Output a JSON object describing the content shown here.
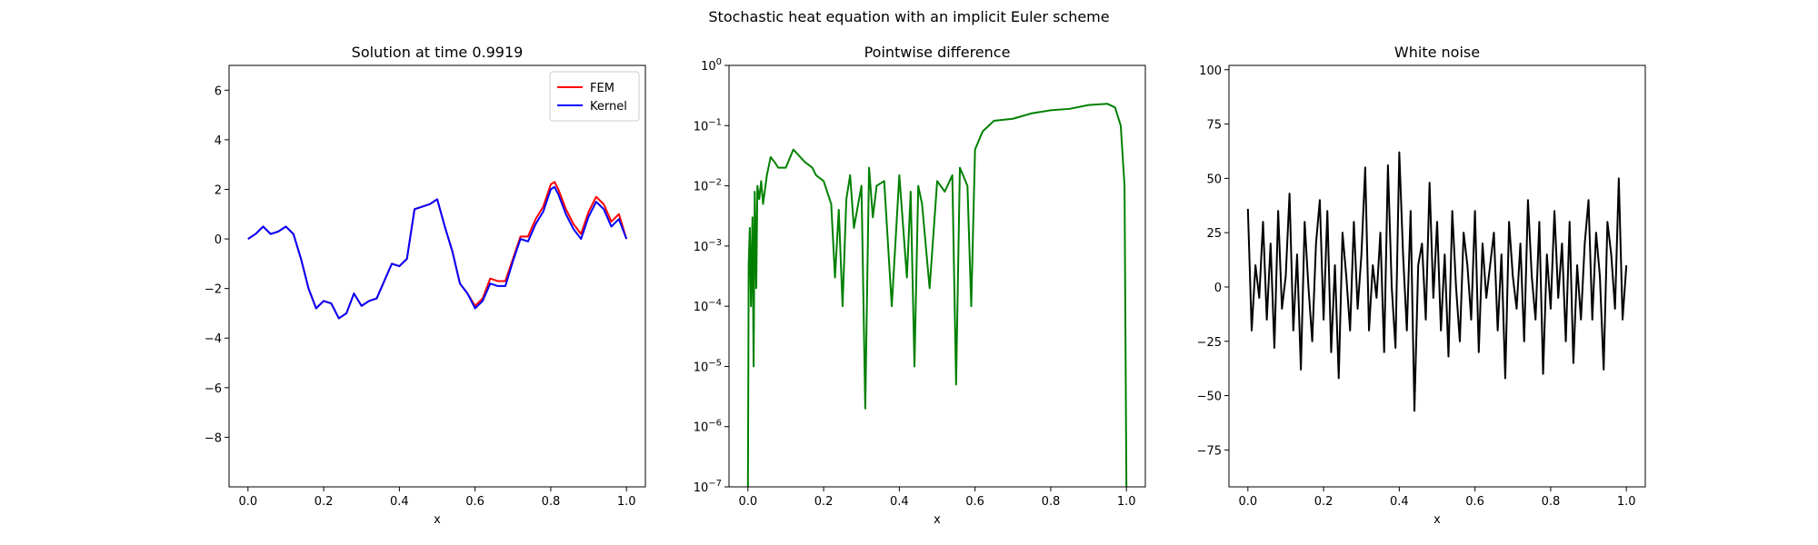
{
  "suptitle": "Stochastic heat equation with an implicit Euler scheme",
  "chart_data": [
    {
      "type": "line",
      "title": "Solution at time 0.9919",
      "xlabel": "x",
      "ylabel": "",
      "xlim": [
        -0.05,
        1.05
      ],
      "ylim": [
        -10,
        7
      ],
      "yscale": "linear",
      "xticks": [
        0.0,
        0.2,
        0.4,
        0.6,
        0.8,
        1.0
      ],
      "xtick_labels": [
        "0.0",
        "0.2",
        "0.4",
        "0.6",
        "0.8",
        "1.0"
      ],
      "yticks": [
        -8,
        -6,
        -4,
        -2,
        0,
        2,
        4,
        6
      ],
      "ytick_labels": [
        "−8",
        "−6",
        "−4",
        "−2",
        "0",
        "2",
        "4",
        "6"
      ],
      "grid": false,
      "legend": "top-right",
      "series": [
        {
          "name": "FEM",
          "color": "#ff0000",
          "x": [
            0.0,
            0.02,
            0.04,
            0.06,
            0.08,
            0.1,
            0.12,
            0.14,
            0.16,
            0.18,
            0.2,
            0.22,
            0.24,
            0.26,
            0.28,
            0.3,
            0.32,
            0.34,
            0.36,
            0.38,
            0.4,
            0.42,
            0.44,
            0.46,
            0.48,
            0.5,
            0.52,
            0.54,
            0.56,
            0.58,
            0.6,
            0.62,
            0.64,
            0.66,
            0.68,
            0.7,
            0.72,
            0.74,
            0.76,
            0.78,
            0.8,
            0.81,
            0.82,
            0.84,
            0.86,
            0.88,
            0.9,
            0.92,
            0.94,
            0.96,
            0.98,
            1.0
          ],
          "y": [
            0.0,
            0.2,
            0.5,
            0.2,
            0.3,
            0.5,
            0.2,
            -0.8,
            -2.0,
            -2.8,
            -2.5,
            -2.6,
            -3.2,
            -3.0,
            -2.2,
            -2.7,
            -2.5,
            -2.4,
            -1.7,
            -1.0,
            -1.1,
            -0.8,
            1.2,
            1.3,
            1.4,
            1.6,
            0.5,
            -0.5,
            -1.8,
            -2.2,
            -2.7,
            -2.4,
            -1.6,
            -1.7,
            -1.7,
            -0.8,
            0.1,
            0.1,
            0.8,
            1.3,
            2.2,
            2.3,
            2.0,
            1.2,
            0.6,
            0.2,
            1.1,
            1.7,
            1.4,
            0.7,
            1.0,
            0.0
          ]
        },
        {
          "name": "Kernel",
          "color": "#0000ff",
          "x": [
            0.0,
            0.02,
            0.04,
            0.06,
            0.08,
            0.1,
            0.12,
            0.14,
            0.16,
            0.18,
            0.2,
            0.22,
            0.24,
            0.26,
            0.28,
            0.3,
            0.32,
            0.34,
            0.36,
            0.38,
            0.4,
            0.42,
            0.44,
            0.46,
            0.48,
            0.5,
            0.52,
            0.54,
            0.56,
            0.58,
            0.6,
            0.62,
            0.64,
            0.66,
            0.68,
            0.7,
            0.72,
            0.74,
            0.76,
            0.78,
            0.8,
            0.81,
            0.82,
            0.84,
            0.86,
            0.88,
            0.9,
            0.92,
            0.94,
            0.96,
            0.98,
            1.0
          ],
          "y": [
            0.0,
            0.2,
            0.5,
            0.2,
            0.3,
            0.5,
            0.2,
            -0.8,
            -2.0,
            -2.8,
            -2.5,
            -2.6,
            -3.2,
            -3.0,
            -2.2,
            -2.7,
            -2.5,
            -2.4,
            -1.7,
            -1.0,
            -1.1,
            -0.8,
            1.2,
            1.3,
            1.4,
            1.6,
            0.5,
            -0.5,
            -1.8,
            -2.2,
            -2.8,
            -2.5,
            -1.8,
            -1.9,
            -1.9,
            -0.9,
            0.0,
            -0.1,
            0.6,
            1.1,
            2.0,
            2.1,
            1.8,
            1.0,
            0.4,
            0.0,
            0.9,
            1.5,
            1.2,
            0.5,
            0.8,
            0.0
          ]
        }
      ]
    },
    {
      "type": "line",
      "title": "Pointwise difference",
      "xlabel": "x",
      "ylabel": "",
      "xlim": [
        -0.05,
        1.05
      ],
      "ylim": [
        1e-07,
        1
      ],
      "yscale": "log",
      "xticks": [
        0.0,
        0.2,
        0.4,
        0.6,
        0.8,
        1.0
      ],
      "xtick_labels": [
        "0.0",
        "0.2",
        "0.4",
        "0.6",
        "0.8",
        "1.0"
      ],
      "yticks": [
        1e-07,
        1e-06,
        1e-05,
        0.0001,
        0.001,
        0.01,
        0.1,
        1
      ],
      "ytick_exponents": [
        "−7",
        "−6",
        "−5",
        "−4",
        "−3",
        "−2",
        "−1",
        "0"
      ],
      "grid": false,
      "legend": "none",
      "series": [
        {
          "color": "#008000",
          "x": [
            0.0,
            0.002,
            0.005,
            0.008,
            0.012,
            0.015,
            0.018,
            0.022,
            0.025,
            0.03,
            0.035,
            0.04,
            0.05,
            0.06,
            0.07,
            0.08,
            0.1,
            0.12,
            0.15,
            0.17,
            0.18,
            0.2,
            0.22,
            0.23,
            0.24,
            0.25,
            0.26,
            0.27,
            0.28,
            0.3,
            0.31,
            0.32,
            0.33,
            0.34,
            0.36,
            0.38,
            0.4,
            0.42,
            0.43,
            0.44,
            0.45,
            0.46,
            0.48,
            0.5,
            0.52,
            0.54,
            0.55,
            0.56,
            0.58,
            0.59,
            0.6,
            0.62,
            0.65,
            0.7,
            0.75,
            0.8,
            0.85,
            0.9,
            0.95,
            0.97,
            0.985,
            0.995,
            1.0
          ],
          "y": [
            1e-07,
            0.0005,
            0.002,
            0.0001,
            0.003,
            1e-05,
            0.008,
            0.0002,
            0.01,
            0.006,
            0.012,
            0.005,
            0.015,
            0.03,
            0.025,
            0.02,
            0.02,
            0.04,
            0.025,
            0.02,
            0.015,
            0.012,
            0.005,
            0.0003,
            0.004,
            0.0001,
            0.006,
            0.015,
            0.002,
            0.01,
            2e-06,
            0.02,
            0.003,
            0.01,
            0.012,
            0.0001,
            0.015,
            0.0003,
            0.008,
            1e-05,
            0.01,
            0.005,
            0.0002,
            0.012,
            0.008,
            0.015,
            5e-06,
            0.02,
            0.01,
            0.0001,
            0.04,
            0.08,
            0.12,
            0.13,
            0.16,
            0.18,
            0.19,
            0.22,
            0.23,
            0.2,
            0.1,
            0.01,
            1e-07
          ]
        }
      ]
    },
    {
      "type": "line",
      "title": "White noise",
      "xlabel": "x",
      "ylabel": "",
      "xlim": [
        -0.05,
        1.05
      ],
      "ylim": [
        -92,
        102
      ],
      "yscale": "linear",
      "xticks": [
        0.0,
        0.2,
        0.4,
        0.6,
        0.8,
        1.0
      ],
      "xtick_labels": [
        "0.0",
        "0.2",
        "0.4",
        "0.6",
        "0.8",
        "1.0"
      ],
      "yticks": [
        -75,
        -50,
        -25,
        0,
        25,
        50,
        75,
        100
      ],
      "ytick_labels": [
        "−75",
        "−50",
        "−25",
        "0",
        "25",
        "50",
        "75",
        "100"
      ],
      "grid": false,
      "legend": "none",
      "series": [
        {
          "color": "#000000",
          "x": [
            0.0,
            0.01,
            0.02,
            0.03,
            0.04,
            0.05,
            0.06,
            0.07,
            0.08,
            0.09,
            0.1,
            0.11,
            0.12,
            0.13,
            0.14,
            0.15,
            0.16,
            0.17,
            0.18,
            0.19,
            0.2,
            0.21,
            0.22,
            0.23,
            0.24,
            0.25,
            0.26,
            0.27,
            0.28,
            0.29,
            0.3,
            0.31,
            0.32,
            0.33,
            0.34,
            0.35,
            0.36,
            0.37,
            0.38,
            0.39,
            0.4,
            0.41,
            0.42,
            0.43,
            0.44,
            0.45,
            0.46,
            0.47,
            0.48,
            0.49,
            0.5,
            0.51,
            0.52,
            0.53,
            0.54,
            0.55,
            0.56,
            0.57,
            0.58,
            0.59,
            0.6,
            0.61,
            0.62,
            0.63,
            0.64,
            0.65,
            0.66,
            0.67,
            0.68,
            0.69,
            0.7,
            0.71,
            0.72,
            0.73,
            0.74,
            0.75,
            0.76,
            0.77,
            0.78,
            0.79,
            0.8,
            0.81,
            0.82,
            0.83,
            0.84,
            0.85,
            0.86,
            0.87,
            0.88,
            0.89,
            0.9,
            0.91,
            0.92,
            0.93,
            0.94,
            0.95,
            0.96,
            0.97,
            0.98,
            0.99,
            1.0
          ],
          "y": [
            36,
            -20,
            10,
            -5,
            30,
            -15,
            20,
            -28,
            35,
            -10,
            5,
            43,
            -20,
            15,
            -38,
            30,
            0,
            -25,
            20,
            40,
            -15,
            35,
            -30,
            10,
            -42,
            25,
            5,
            -20,
            30,
            -10,
            15,
            55,
            -20,
            10,
            -5,
            25,
            -30,
            56,
            0,
            -28,
            62,
            15,
            -20,
            35,
            -57,
            10,
            20,
            -15,
            48,
            -5,
            30,
            -20,
            15,
            -32,
            35,
            0,
            -25,
            25,
            10,
            -15,
            35,
            -30,
            20,
            -5,
            10,
            25,
            -20,
            15,
            -42,
            30,
            5,
            -10,
            20,
            -25,
            40,
            5,
            -15,
            30,
            -40,
            15,
            -10,
            35,
            -5,
            20,
            -25,
            30,
            -35,
            10,
            -15,
            20,
            40,
            -15,
            25,
            5,
            -38,
            30,
            15,
            -10,
            50,
            -15,
            10
          ]
        }
      ]
    }
  ]
}
